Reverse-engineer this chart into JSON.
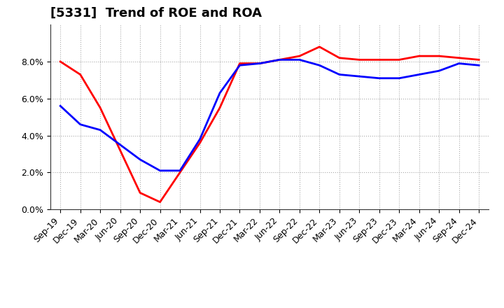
{
  "title": "[5331]  Trend of ROE and ROA",
  "labels": [
    "Sep-19",
    "Dec-19",
    "Mar-20",
    "Jun-20",
    "Sep-20",
    "Dec-20",
    "Mar-21",
    "Jun-21",
    "Sep-21",
    "Dec-21",
    "Mar-22",
    "Jun-22",
    "Sep-22",
    "Dec-22",
    "Mar-23",
    "Jun-23",
    "Sep-23",
    "Dec-23",
    "Mar-24",
    "Jun-24",
    "Sep-24",
    "Dec-24"
  ],
  "roe": [
    8.0,
    7.3,
    5.5,
    3.2,
    0.9,
    0.4,
    2.0,
    3.6,
    5.5,
    7.9,
    7.9,
    8.1,
    8.3,
    8.8,
    8.2,
    8.1,
    8.1,
    8.1,
    8.3,
    8.3,
    8.2,
    8.1
  ],
  "roa": [
    5.6,
    4.6,
    4.3,
    3.5,
    2.7,
    2.1,
    2.1,
    3.8,
    6.3,
    7.8,
    7.9,
    8.1,
    8.1,
    7.8,
    7.3,
    7.2,
    7.1,
    7.1,
    7.3,
    7.5,
    7.9,
    7.8
  ],
  "roe_color": "#ff0000",
  "roa_color": "#0000ff",
  "bg_color": "#ffffff",
  "plot_bg_color": "#ffffff",
  "grid_color": "#aaaaaa",
  "ylim": [
    0.0,
    10.0
  ],
  "yticks": [
    0.0,
    2.0,
    4.0,
    6.0,
    8.0
  ],
  "line_width": 2.0,
  "title_fontsize": 13,
  "tick_fontsize": 9,
  "legend_fontsize": 10
}
